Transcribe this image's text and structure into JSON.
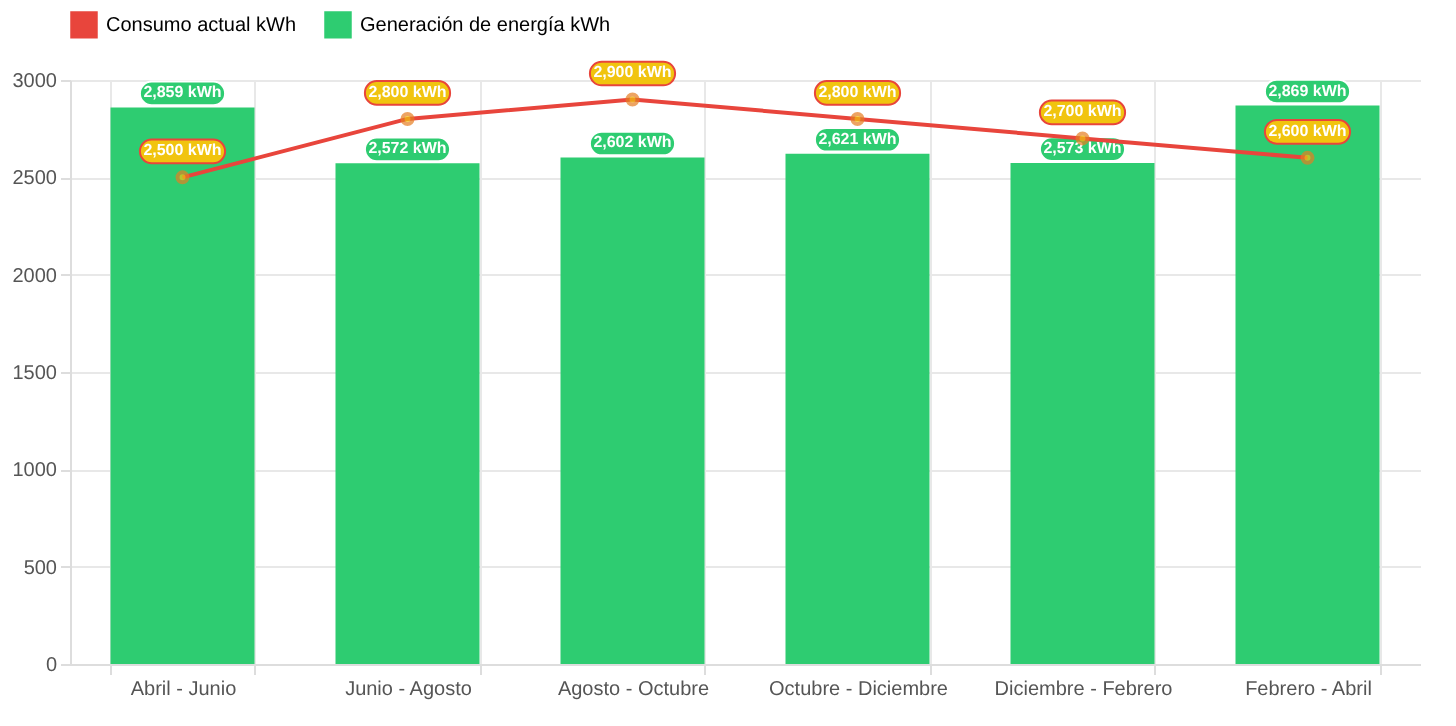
{
  "chart_data": {
    "type": "bar",
    "categories": [
      "Abril - Junio",
      "Junio - Agosto",
      "Agosto - Octubre",
      "Octubre - Diciembre",
      "Diciembre - Febrero",
      "Febrero - Abril"
    ],
    "series": [
      {
        "name": "Consumo actual kWh",
        "type": "line",
        "color": "#e8453c",
        "values": [
          2500,
          2800,
          2900,
          2800,
          2700,
          2600
        ],
        "value_labels": [
          "2,500 kWh",
          "2,800 kWh",
          "2,900 kWh",
          "2,800 kWh",
          "2,700 kWh",
          "2,600 kWh"
        ]
      },
      {
        "name": "Generación de energía kWh",
        "color": "#2ecc71",
        "values": [
          2859,
          2572,
          2602,
          2621,
          2573,
          2869
        ],
        "value_labels": [
          "2,859 kWh",
          "2,572 kWh",
          "2,602 kWh",
          "2,621 kWh",
          "2,573 kWh",
          "2,869 kWh"
        ]
      }
    ],
    "ylim": [
      0,
      3000
    ],
    "yticks": [
      0,
      500,
      1000,
      1500,
      2000,
      2500,
      3000
    ],
    "grid": true,
    "legend": "top",
    "marker": "circle"
  }
}
